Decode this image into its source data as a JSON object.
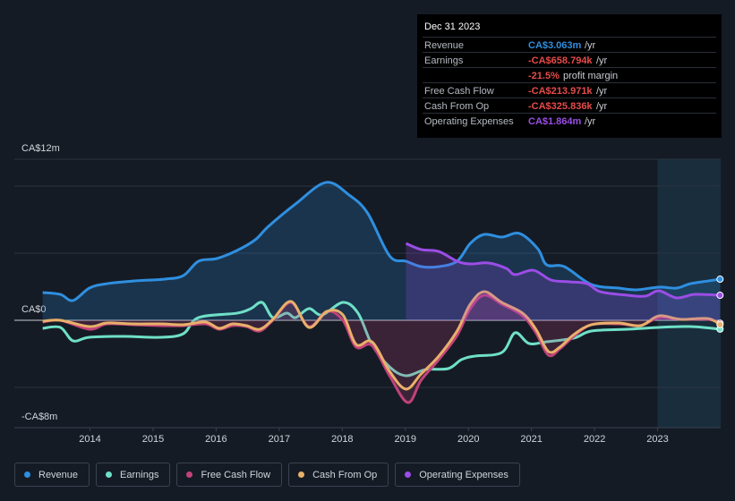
{
  "chart_data": {
    "type": "line",
    "xlim": [
      2012.8,
      2024.0
    ],
    "xticks": [
      2014,
      2015,
      2016,
      2017,
      2018,
      2019,
      2020,
      2021,
      2022,
      2023
    ],
    "ylim": [
      -8,
      12
    ],
    "yticks": [
      {
        "value": 12,
        "label": "CA$12m"
      },
      {
        "value": 0,
        "label": "CA$0"
      },
      {
        "value": -8,
        "label": "-CA$8m"
      }
    ],
    "gridlines": [
      -5,
      5,
      10
    ],
    "series": [
      {
        "name": "Revenue",
        "color": "#2f8fe0",
        "fill": true,
        "x": [
          2013.25,
          2013.53,
          2013.73,
          2013.99,
          2014.27,
          2014.7,
          2015.19,
          2015.48,
          2015.72,
          2016.01,
          2016.33,
          2016.62,
          2016.83,
          2017.26,
          2017.74,
          2018.11,
          2018.4,
          2018.75,
          2019.01,
          2019.25,
          2019.53,
          2019.82,
          2020.03,
          2020.25,
          2020.53,
          2020.81,
          2021.1,
          2021.24,
          2021.52,
          2021.95,
          2022.38,
          2022.66,
          2023.02,
          2023.3,
          2023.52,
          2023.8,
          2023.99
        ],
        "values": [
          2.07,
          1.93,
          1.47,
          2.4,
          2.73,
          2.93,
          3.07,
          3.33,
          4.4,
          4.6,
          5.2,
          6.0,
          7.0,
          8.67,
          10.27,
          9.33,
          8.0,
          4.8,
          4.4,
          4.0,
          4.0,
          4.4,
          5.73,
          6.4,
          6.2,
          6.47,
          5.33,
          4.13,
          4.0,
          2.67,
          2.4,
          2.27,
          2.47,
          2.4,
          2.73,
          2.93,
          3.063
        ]
      },
      {
        "name": "Earnings",
        "color": "#6fe0c8",
        "fill": false,
        "x": [
          2013.25,
          2013.53,
          2013.73,
          2013.99,
          2014.55,
          2015.12,
          2015.48,
          2015.72,
          2016.33,
          2016.55,
          2016.73,
          2016.9,
          2017.12,
          2017.26,
          2017.47,
          2017.68,
          2018.01,
          2018.25,
          2018.47,
          2018.75,
          2019.01,
          2019.32,
          2019.68,
          2019.89,
          2020.1,
          2020.53,
          2020.74,
          2020.96,
          2021.24,
          2021.67,
          2021.95,
          2022.52,
          2023.02,
          2023.52,
          2023.99
        ],
        "values": [
          -0.6,
          -0.53,
          -1.53,
          -1.27,
          -1.2,
          -1.27,
          -1.0,
          0.2,
          0.53,
          0.87,
          1.33,
          0.2,
          0.53,
          0.2,
          0.87,
          0.4,
          1.33,
          0.53,
          -1.8,
          -3.47,
          -4.13,
          -3.67,
          -3.6,
          -2.93,
          -2.67,
          -2.4,
          -0.93,
          -1.73,
          -1.6,
          -1.33,
          -0.8,
          -0.67,
          -0.53,
          -0.47,
          -0.659
        ]
      },
      {
        "name": "Free Cash Flow",
        "color": "#c2427a",
        "fill": true,
        "x": [
          2013.25,
          2013.53,
          2013.99,
          2014.27,
          2014.7,
          2015.12,
          2015.48,
          2015.83,
          2016.05,
          2016.26,
          2016.48,
          2016.69,
          2016.9,
          2017.19,
          2017.47,
          2017.76,
          2018.01,
          2018.22,
          2018.47,
          2018.75,
          2019.04,
          2019.25,
          2019.53,
          2019.82,
          2020.03,
          2020.25,
          2020.53,
          2020.86,
          2021.07,
          2021.27,
          2021.45,
          2021.67,
          2021.95,
          2022.38,
          2022.73,
          2023.02,
          2023.37,
          2023.8,
          2023.99
        ],
        "values": [
          -0.13,
          0,
          -0.67,
          -0.27,
          -0.33,
          -0.4,
          -0.4,
          -0.27,
          -0.67,
          -0.4,
          -0.47,
          -0.8,
          0,
          1.33,
          -0.47,
          0.67,
          0,
          -2.0,
          -1.87,
          -4.13,
          -6.13,
          -4.47,
          -2.93,
          -1.13,
          0.87,
          1.87,
          1.2,
          0.33,
          -0.93,
          -2.6,
          -2.13,
          -1.2,
          -0.33,
          -0.27,
          -0.4,
          0.2,
          0.07,
          0.07,
          -0.214
        ]
      },
      {
        "name": "Cash From Op",
        "color": "#e8b06a",
        "fill": false,
        "x": [
          2013.25,
          2013.53,
          2013.99,
          2014.27,
          2014.7,
          2015.12,
          2015.48,
          2015.83,
          2016.05,
          2016.26,
          2016.48,
          2016.69,
          2016.9,
          2017.19,
          2017.47,
          2017.76,
          2018.01,
          2018.22,
          2018.47,
          2018.75,
          2019.01,
          2019.25,
          2019.53,
          2019.82,
          2020.03,
          2020.25,
          2020.53,
          2020.86,
          2021.07,
          2021.27,
          2021.45,
          2021.67,
          2021.95,
          2022.38,
          2022.73,
          2023.02,
          2023.37,
          2023.8,
          2023.99
        ],
        "values": [
          -0.07,
          0,
          -0.47,
          -0.2,
          -0.27,
          -0.27,
          -0.33,
          -0.13,
          -0.6,
          -0.27,
          -0.4,
          -0.67,
          0.07,
          1.4,
          -0.53,
          0.67,
          0.4,
          -1.8,
          -1.6,
          -3.8,
          -5.13,
          -4.0,
          -2.67,
          -0.8,
          1.2,
          2.13,
          1.33,
          0.53,
          -0.67,
          -2.33,
          -2.0,
          -1.07,
          -0.33,
          -0.2,
          -0.4,
          0.33,
          0.07,
          0.13,
          -0.326
        ]
      },
      {
        "name": "Operating Expenses",
        "color": "#9b4de6",
        "fill": true,
        "x": [
          2019.01,
          2019.25,
          2019.53,
          2019.82,
          2020.03,
          2020.32,
          2020.6,
          2020.74,
          2021.03,
          2021.31,
          2021.6,
          2021.88,
          2022.09,
          2022.52,
          2022.81,
          2023.02,
          2023.3,
          2023.59,
          2023.99
        ],
        "values": [
          5.73,
          5.27,
          5.13,
          4.4,
          4.2,
          4.27,
          3.87,
          3.4,
          3.73,
          3.0,
          2.87,
          2.73,
          2.13,
          1.87,
          1.8,
          2.2,
          1.67,
          1.93,
          1.864
        ]
      }
    ]
  },
  "tooltip": {
    "date": "Dec 31 2023",
    "rows": [
      {
        "label": "Revenue",
        "value": "CA$3.063m",
        "unit": "/yr",
        "color": "#2f8fe0"
      },
      {
        "label": "Earnings",
        "value": "-CA$658.794k",
        "unit": "/yr",
        "color": "#e64b4b"
      },
      {
        "value": "-21.5%",
        "unit": "profit margin",
        "color": "#e64b4b"
      },
      {
        "label": "Free Cash Flow",
        "value": "-CA$213.971k",
        "unit": "/yr",
        "color": "#e64b4b"
      },
      {
        "label": "Cash From Op",
        "value": "-CA$325.836k",
        "unit": "/yr",
        "color": "#e64b4b"
      },
      {
        "label": "Operating Expenses",
        "value": "CA$1.864m",
        "unit": "/yr",
        "color": "#9b4de6"
      }
    ]
  }
}
